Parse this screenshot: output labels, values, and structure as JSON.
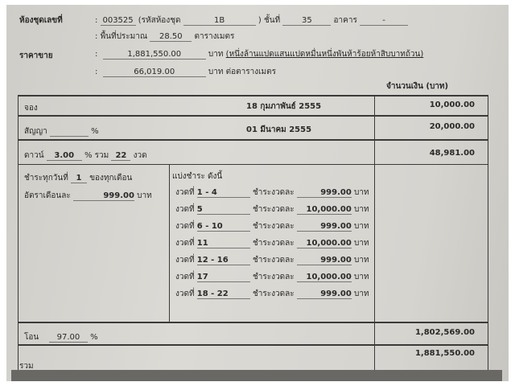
{
  "unit": {
    "label": "ห้องชุดเลขที่",
    "number": "003525",
    "code_label": "(รหัสห้องชุด",
    "code": "1B",
    "code_close": ")",
    "floor_label": "ชั้นที่",
    "floor": "35",
    "building_label": "อาคาร",
    "building": "-",
    "area_label": "พื้นที่ประมาณ",
    "area": "28.50",
    "area_unit": "ตารางเมตร"
  },
  "price": {
    "label": "ราคาขาย",
    "total": "1,881,550.00",
    "baht": "บาท",
    "in_words": "(หนึ่งล้านแปดแสนแปดหมื่นหนึ่งพันห้าร้อยห้าสิบบาทถ้วน)",
    "per_sqm": "66,019.00",
    "per_sqm_unit": "บาท ต่อตารางเมตร"
  },
  "amount_header": "จำนวนเงิน (บาท)",
  "rows": {
    "booking": {
      "label": "จอง",
      "date": "18 กุมภาพันธ์ 2555",
      "amount": "10,000.00"
    },
    "contract": {
      "label": "สัญญา",
      "pct_sign": "%",
      "date": "01 มีนาคม 2555",
      "amount": "20,000.00"
    },
    "down": {
      "label": "ดาวน์",
      "pct": "3.00",
      "pct_sign": "%",
      "total_label": "รวม",
      "count": "22",
      "count_unit": "งวด",
      "amount": "48,981.00"
    },
    "transfer": {
      "label": "โอน",
      "pct": "97.00",
      "pct_sign": "%",
      "amount": "1,802,569.00"
    },
    "total": {
      "label": "รวม",
      "amount": "1,881,550.00"
    }
  },
  "schedule": {
    "pay_day_label": "ชำระทุกวันที่",
    "pay_day": "1",
    "pay_day_suffix": "ของทุกเดือน",
    "monthly_label": "อัตราเดือนละ",
    "monthly": "999.00",
    "baht": "บาท",
    "split_label": "แบ่งชำระ ดังนี้",
    "inst_label": "งวดที่",
    "per_label": "ชำระงวดละ",
    "installments": [
      {
        "n": "1 - 4",
        "amt": "999.00"
      },
      {
        "n": "5",
        "amt": "10,000.00"
      },
      {
        "n": "6 - 10",
        "amt": "999.00"
      },
      {
        "n": "11",
        "amt": "10,000.00"
      },
      {
        "n": "12 - 16",
        "amt": "999.00"
      },
      {
        "n": "17",
        "amt": "10,000.00"
      },
      {
        "n": "18 - 22",
        "amt": "999.00"
      }
    ]
  }
}
